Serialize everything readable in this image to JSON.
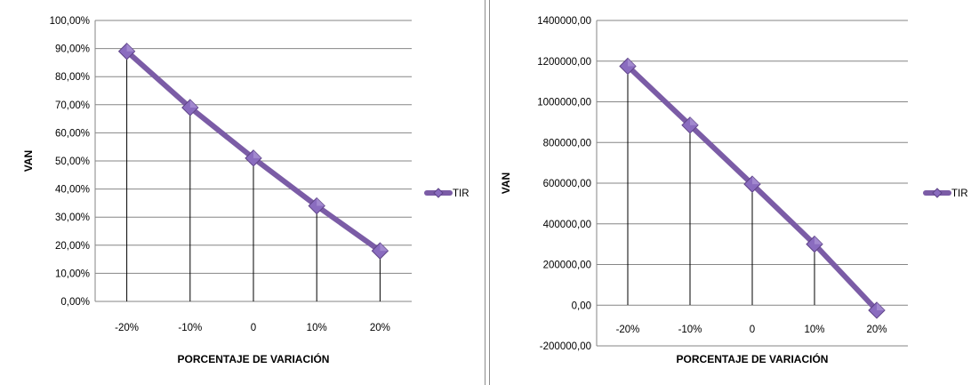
{
  "chart_data": [
    {
      "type": "line",
      "categories": [
        "-20%",
        "-10%",
        "0",
        "10%",
        "20%"
      ],
      "series": [
        {
          "name": "TIR",
          "values": [
            0.89,
            0.69,
            0.51,
            0.34,
            0.18
          ]
        }
      ],
      "ylim": [
        0,
        1
      ],
      "ytick_values": [
        0,
        0.1,
        0.2,
        0.3,
        0.4,
        0.5,
        0.6,
        0.7,
        0.8,
        0.9,
        1.0
      ],
      "ytick_labels": [
        "0,00%",
        "10,00%",
        "20,00%",
        "30,00%",
        "40,00%",
        "50,00%",
        "60,00%",
        "70,00%",
        "80,00%",
        "90,00%",
        "100,00%"
      ],
      "xlabel": "PORCENTAJE DE VARIACIÓN",
      "ylabel": "VAN",
      "grid": true,
      "legend": "right",
      "drop_lines": true,
      "line_color": "#7b5ca6"
    },
    {
      "type": "line",
      "categories": [
        "-20%",
        "-10%",
        "0",
        "10%",
        "20%"
      ],
      "series": [
        {
          "name": "TIR",
          "values": [
            1175000,
            885000,
            595000,
            300000,
            -25000
          ]
        }
      ],
      "ylim": [
        -200000,
        1400000
      ],
      "ytick_values": [
        -200000,
        0,
        200000,
        400000,
        600000,
        800000,
        1000000,
        1200000,
        1400000
      ],
      "ytick_labels": [
        "-200000,00",
        "0,00",
        "200000,00",
        "400000,00",
        "600000,00",
        "800000,00",
        "1000000,00",
        "1200000,00",
        "1400000,00"
      ],
      "xlabel": "PORCENTAJE DE VARIACIÓN",
      "ylabel": "VAN",
      "grid": true,
      "legend": "right",
      "drop_lines": true,
      "line_color": "#7b5ca6"
    }
  ]
}
